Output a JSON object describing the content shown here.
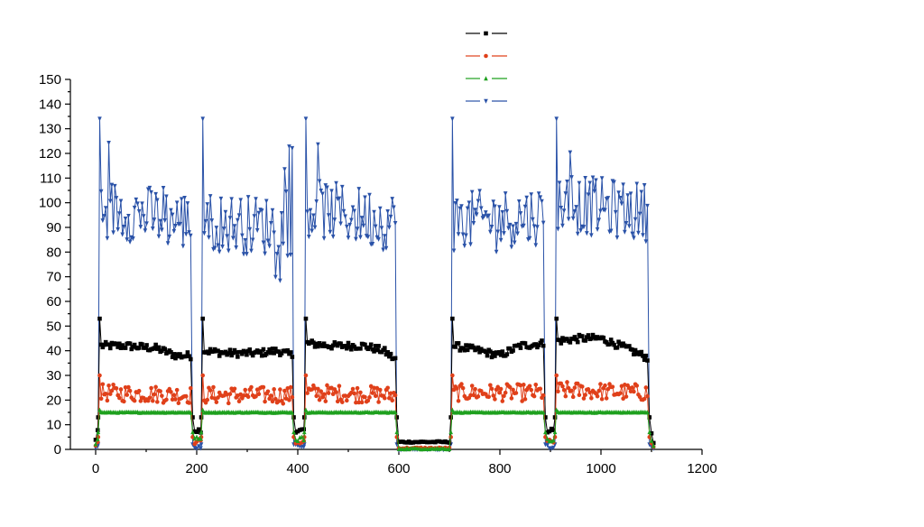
{
  "chart_data": {
    "type": "line",
    "title": "",
    "xlabel": "",
    "ylabel": "",
    "xlim": [
      -50,
      1200
    ],
    "ylim": [
      0,
      150
    ],
    "x_ticks": [
      0,
      200,
      400,
      600,
      800,
      1000,
      1200
    ],
    "y_ticks": [
      0,
      10,
      20,
      30,
      40,
      50,
      60,
      70,
      80,
      90,
      100,
      110,
      120,
      130,
      140,
      150
    ],
    "x_tick_labels": [
      "0",
      "200",
      "400",
      "600",
      "800",
      "1000",
      "1200"
    ],
    "y_tick_labels": [
      "0",
      "10",
      "20",
      "30",
      "40",
      "50",
      "60",
      "70",
      "80",
      "90",
      "100",
      "110",
      "120",
      "130",
      "140",
      "150"
    ],
    "grid": false,
    "legend_position": "top-center",
    "segments": [
      {
        "start": 8,
        "end": 192
      },
      {
        "start": 212,
        "end": 392
      },
      {
        "start": 416,
        "end": 596
      },
      {
        "start": 706,
        "end": 890
      },
      {
        "start": 912,
        "end": 1096
      }
    ],
    "series": [
      {
        "marker": "square",
        "color": "#000000",
        "spike": 53,
        "segments_level": [
          [
            [
              10,
              42
            ],
            [
              60,
              42
            ],
            [
              120,
              41
            ],
            [
              160,
              38
            ],
            [
              190,
              38
            ]
          ],
          [
            [
              215,
              40
            ],
            [
              260,
              39
            ],
            [
              320,
              39
            ],
            [
              360,
              40
            ],
            [
              390,
              38
            ]
          ],
          [
            [
              418,
              43
            ],
            [
              470,
              42
            ],
            [
              530,
              42
            ],
            [
              570,
              40
            ],
            [
              595,
              36
            ]
          ],
          [
            [
              708,
              42
            ],
            [
              760,
              40
            ],
            [
              800,
              38
            ],
            [
              840,
              42
            ],
            [
              888,
              43
            ]
          ],
          [
            [
              914,
              44
            ],
            [
              960,
              45
            ],
            [
              1000,
              45
            ],
            [
              1050,
              41
            ],
            [
              1094,
              37
            ]
          ]
        ],
        "noise": 1.5,
        "gap_level": 3,
        "transition_level": 13
      },
      {
        "marker": "circle",
        "color": "#e0401a",
        "spike": 30,
        "segments_level": [
          [
            [
              10,
              23
            ],
            [
              190,
              22
            ]
          ],
          [
            [
              215,
              22
            ],
            [
              390,
              22
            ]
          ],
          [
            [
              418,
              23
            ],
            [
              595,
              22
            ]
          ],
          [
            [
              708,
              23
            ],
            [
              888,
              23
            ]
          ],
          [
            [
              914,
              24
            ],
            [
              1094,
              23
            ]
          ]
        ],
        "noise": 3.5,
        "gap_level": 0.5,
        "transition_level": 5
      },
      {
        "marker": "triangle-up",
        "color": "#1ea01e",
        "spike": 16,
        "segments_level": [
          [
            [
              10,
              15
            ],
            [
              190,
              15
            ]
          ],
          [
            [
              215,
              15
            ],
            [
              390,
              15
            ]
          ],
          [
            [
              418,
              15
            ],
            [
              595,
              15
            ]
          ],
          [
            [
              708,
              15
            ],
            [
              888,
              15
            ]
          ],
          [
            [
              914,
              15
            ],
            [
              1094,
              15
            ]
          ]
        ],
        "noise": 0.15,
        "gap_level": 0.3,
        "transition_level": 7
      },
      {
        "marker": "triangle-down",
        "color": "#2a52a8",
        "spike": 134,
        "segments_level": [
          [
            [
              10,
              98
            ],
            [
              190,
              92
            ]
          ],
          [
            [
              215,
              92
            ],
            [
              390,
              90
            ]
          ],
          [
            [
              418,
              98
            ],
            [
              595,
              92
            ]
          ],
          [
            [
              708,
              92
            ],
            [
              888,
              95
            ]
          ],
          [
            [
              914,
              100
            ],
            [
              1094,
              96
            ]
          ]
        ],
        "noise": 12,
        "gap_level": 0,
        "transition_level": 2
      }
    ]
  }
}
